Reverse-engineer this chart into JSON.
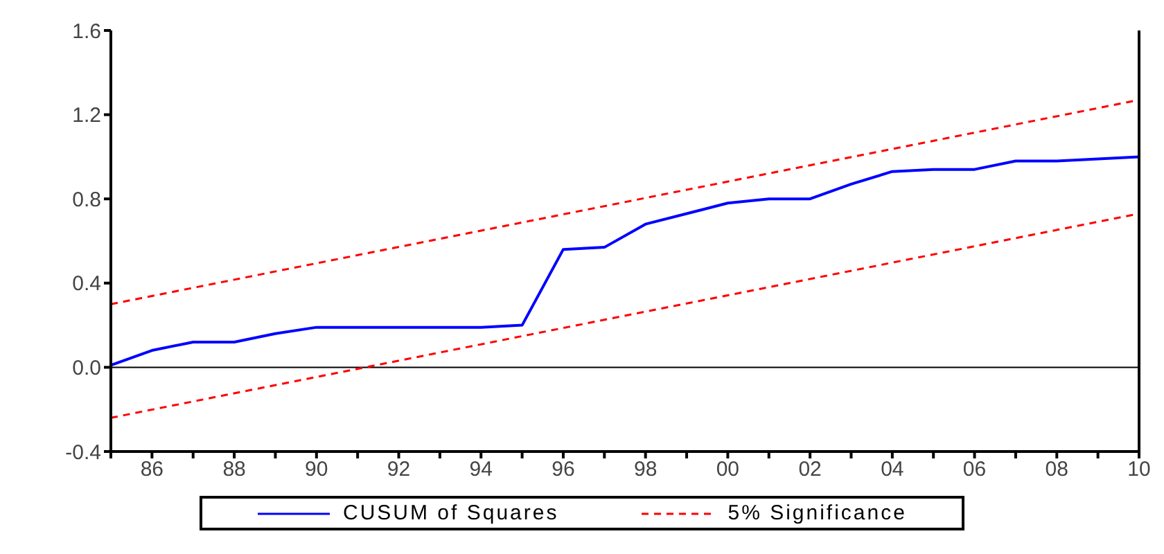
{
  "chart_data": {
    "type": "line",
    "xlim": [
      1985,
      2010
    ],
    "ylim": [
      -0.4,
      1.6
    ],
    "xticks": [
      {
        "value": 1985,
        "label": null
      },
      {
        "value": 1986,
        "label": "86"
      },
      {
        "value": 1987,
        "label": null
      },
      {
        "value": 1988,
        "label": "88"
      },
      {
        "value": 1989,
        "label": null
      },
      {
        "value": 1990,
        "label": "90"
      },
      {
        "value": 1991,
        "label": null
      },
      {
        "value": 1992,
        "label": "92"
      },
      {
        "value": 1993,
        "label": null
      },
      {
        "value": 1994,
        "label": "94"
      },
      {
        "value": 1995,
        "label": null
      },
      {
        "value": 1996,
        "label": "96"
      },
      {
        "value": 1997,
        "label": null
      },
      {
        "value": 1998,
        "label": "98"
      },
      {
        "value": 1999,
        "label": null
      },
      {
        "value": 2000,
        "label": "00"
      },
      {
        "value": 2001,
        "label": null
      },
      {
        "value": 2002,
        "label": "02"
      },
      {
        "value": 2003,
        "label": null
      },
      {
        "value": 2004,
        "label": "04"
      },
      {
        "value": 2005,
        "label": null
      },
      {
        "value": 2006,
        "label": "06"
      },
      {
        "value": 2007,
        "label": null
      },
      {
        "value": 2008,
        "label": "08"
      },
      {
        "value": 2009,
        "label": null
      },
      {
        "value": 2010,
        "label": "10"
      }
    ],
    "yticks": [
      {
        "value": -0.4,
        "label": "-0.4"
      },
      {
        "value": 0,
        "label": "0.0"
      },
      0.4,
      0.8,
      1.2,
      1.6
    ],
    "grid": false,
    "legend": "bottom",
    "marker": "none",
    "ref_lines": [
      {
        "axis": "y",
        "value": 0,
        "color": "#000000",
        "line_style": "solid"
      }
    ],
    "series": [
      {
        "name": "CUSUM of Squares",
        "color": "#0000ff",
        "line_style": "solid",
        "x": [
          1985,
          1986,
          1987,
          1988,
          1989,
          1990,
          1991,
          1992,
          1993,
          1994,
          1995,
          1996,
          1997,
          1998,
          1999,
          2000,
          2001,
          2002,
          2003,
          2004,
          2005,
          2006,
          2007,
          2008,
          2009,
          2010
        ],
        "values": [
          0.01,
          0.08,
          0.12,
          0.12,
          0.16,
          0.19,
          0.19,
          0.19,
          0.19,
          0.19,
          0.2,
          0.56,
          0.57,
          0.68,
          0.73,
          0.78,
          0.8,
          0.8,
          0.87,
          0.93,
          0.94,
          0.94,
          0.98,
          0.98,
          0.99,
          1.0
        ]
      },
      {
        "name": "5% Significance",
        "color": "#ff0000",
        "line_style": "dashed",
        "x": [
          1985,
          2010
        ],
        "values": [
          0.3,
          1.27
        ]
      },
      {
        "color": "#ff0000",
        "line_style": "dashed",
        "x": [
          1985,
          2010
        ],
        "values": [
          -0.24,
          0.73
        ]
      }
    ]
  }
}
